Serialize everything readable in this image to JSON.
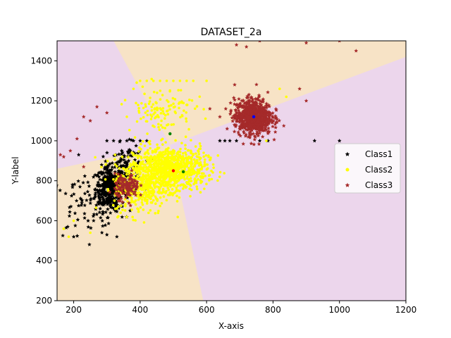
{
  "chart_data": {
    "type": "scatter",
    "title": "DATASET_2a",
    "xlabel": "X-axis",
    "ylabel": "Y-label",
    "xlim": [
      150,
      1200
    ],
    "ylim": [
      200,
      1500
    ],
    "x_ticks": [
      200,
      400,
      600,
      800,
      1000,
      1200
    ],
    "y_ticks": [
      200,
      400,
      600,
      800,
      1000,
      1200,
      1400
    ],
    "legend_position": "center-right",
    "grid": false,
    "region_colors": {
      "class1": "#f7e3c6",
      "class2": "#ecd6ec"
    },
    "decision_boundaries": [
      {
        "from": [
          150,
          860
        ],
        "to": [
          400,
          960
        ]
      },
      {
        "from": [
          320,
          1500
        ],
        "to": [
          490,
          980
        ]
      },
      {
        "from": [
          490,
          980
        ],
        "to": [
          1200,
          1420
        ]
      },
      {
        "from": [
          490,
          980
        ],
        "to": [
          590,
          200
        ]
      }
    ],
    "series": [
      {
        "name": "Class1",
        "color": "#000000",
        "marker": "star",
        "clusters": [
          {
            "cx": 310,
            "cy": 760,
            "sx": 22,
            "sy": 55,
            "n": 420
          },
          {
            "cx": 360,
            "cy": 860,
            "sx": 25,
            "sy": 60,
            "n": 120
          },
          {
            "cx": 220,
            "cy": 660,
            "sx": 45,
            "sy": 80,
            "n": 60
          }
        ],
        "extra_points": [
          [
            200,
            520
          ],
          [
            215,
            930
          ],
          [
            260,
            600
          ],
          [
            285,
            540
          ],
          [
            300,
            530
          ],
          [
            330,
            520
          ],
          [
            640,
            1000
          ],
          [
            655,
            1000
          ],
          [
            670,
            1000
          ],
          [
            690,
            1000
          ],
          [
            760,
            1000
          ],
          [
            785,
            1000
          ],
          [
            925,
            1000
          ],
          [
            1000,
            1000
          ],
          [
            300,
            1000
          ],
          [
            320,
            1000
          ],
          [
            340,
            1000
          ],
          [
            360,
            1000
          ],
          [
            380,
            1000
          ],
          [
            400,
            1000
          ],
          [
            420,
            1000
          ]
        ]
      },
      {
        "name": "Class2",
        "color": "#ffff00",
        "marker": "dot",
        "clusters": [
          {
            "cx": 490,
            "cy": 860,
            "sx": 55,
            "sy": 55,
            "n": 900
          },
          {
            "cx": 400,
            "cy": 770,
            "sx": 40,
            "sy": 70,
            "n": 350
          },
          {
            "cx": 460,
            "cy": 1160,
            "sx": 50,
            "sy": 60,
            "n": 120
          }
        ],
        "extra_points": [
          [
            170,
            560
          ],
          [
            185,
            520
          ],
          [
            200,
            600
          ],
          [
            250,
            540
          ],
          [
            400,
            1300
          ],
          [
            420,
            1300
          ],
          [
            440,
            1300
          ],
          [
            460,
            1300
          ],
          [
            480,
            1300
          ],
          [
            500,
            1300
          ],
          [
            520,
            1300
          ],
          [
            540,
            1300
          ],
          [
            560,
            1300
          ],
          [
            600,
            1300
          ],
          [
            780,
            1000
          ],
          [
            820,
            1260
          ],
          [
            840,
            1220
          ],
          [
            380,
            1260
          ],
          [
            360,
            1120
          ]
        ]
      },
      {
        "name": "Class3",
        "color": "#a52a2a",
        "marker": "star",
        "clusters": [
          {
            "cx": 740,
            "cy": 1120,
            "sx": 28,
            "sy": 45,
            "n": 700
          },
          {
            "cx": 360,
            "cy": 770,
            "sx": 18,
            "sy": 30,
            "n": 130
          }
        ],
        "extra_points": [
          [
            160,
            930
          ],
          [
            170,
            920
          ],
          [
            190,
            950
          ],
          [
            210,
            1010
          ],
          [
            230,
            1120
          ],
          [
            270,
            1170
          ],
          [
            300,
            1140
          ],
          [
            230,
            870
          ],
          [
            250,
            1100
          ],
          [
            690,
            1480
          ],
          [
            720,
            1470
          ],
          [
            760,
            1500
          ],
          [
            900,
            1490
          ],
          [
            1000,
            1500
          ],
          [
            1050,
            1450
          ],
          [
            880,
            1260
          ],
          [
            900,
            1200
          ],
          [
            640,
            1120
          ],
          [
            610,
            1160
          ]
        ]
      }
    ],
    "class_means": [
      {
        "x": 742,
        "y": 1120,
        "color": "#0000ff"
      },
      {
        "x": 530,
        "y": 845,
        "color": "#008000"
      },
      {
        "x": 500,
        "y": 850,
        "color": "#ff0000"
      },
      {
        "x": 490,
        "y": 1035,
        "color": "#008000"
      }
    ]
  }
}
